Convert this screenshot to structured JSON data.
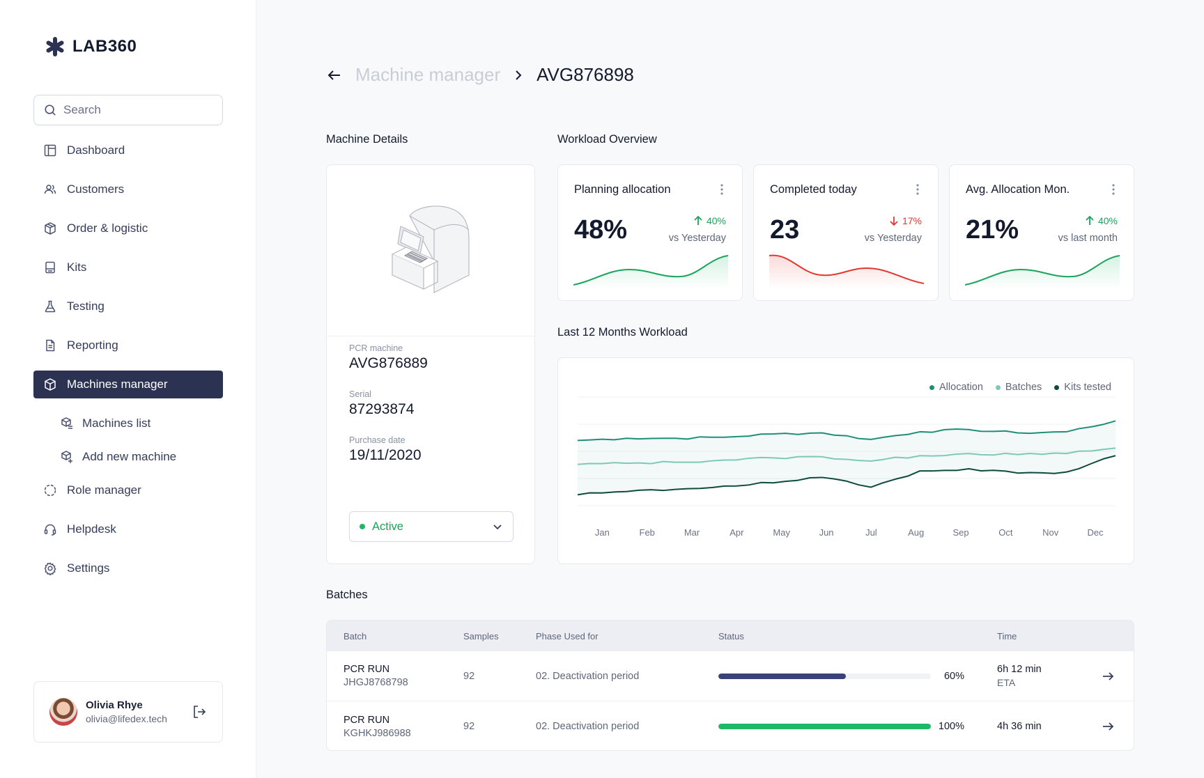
{
  "app": {
    "name": "LAB360"
  },
  "search": {
    "placeholder": "Search"
  },
  "nav": {
    "dashboard": "Dashboard",
    "customers": "Customers",
    "orders": "Order & logistic",
    "kits": "Kits",
    "testing": "Testing",
    "reporting": "Reporting",
    "machines": "Machines manager",
    "machines_list": "Machines list",
    "add_machine": "Add new machine",
    "roles": "Role manager",
    "helpdesk": "Helpdesk",
    "settings": "Settings"
  },
  "user": {
    "name": "Olivia Rhye",
    "email": "olivia@lifedex.tech"
  },
  "breadcrumb": {
    "parent": "Machine manager",
    "current": "AVG876898"
  },
  "machine": {
    "section_title": "Machine Details",
    "type_label": "PCR machine",
    "name": "AVG876889",
    "serial_label": "Serial",
    "serial": "87293874",
    "purchase_label": "Purchase date",
    "purchase_date": "19/11/2020",
    "status": "Active"
  },
  "workload": {
    "section_title": "Workload Overview",
    "kpis": [
      {
        "title": "Planning allocation",
        "value": "48%",
        "delta": "40%",
        "direction": "up",
        "sub": "vs Yesterday",
        "color": "#1aa35a"
      },
      {
        "title": "Completed today",
        "value": "23",
        "delta": "17%",
        "direction": "down",
        "sub": "vs Yesterday",
        "color": "#e2382f"
      },
      {
        "title": "Avg. Allocation Mon.",
        "value": "21%",
        "delta": "40%",
        "direction": "up",
        "sub": "vs last month",
        "color": "#1aa35a"
      }
    ]
  },
  "chart_section": {
    "title": "Last 12 Months Workload"
  },
  "chart_data": {
    "type": "line",
    "title": "Last 12 Months Workload",
    "categories": [
      "Jan",
      "Feb",
      "Mar",
      "Apr",
      "May",
      "Jun",
      "Jul",
      "Aug",
      "Sep",
      "Oct",
      "Nov",
      "Dec"
    ],
    "ylim": [
      0,
      100
    ],
    "grid": true,
    "legend": "top-right",
    "series": [
      {
        "name": "Allocation",
        "color": "#1d8f78",
        "values": [
          60,
          62,
          62,
          63,
          66,
          67,
          61,
          68,
          70,
          67,
          68,
          78
        ]
      },
      {
        "name": "Batches",
        "color": "#7cc9b8",
        "values": [
          38,
          39,
          40,
          42,
          44,
          45,
          41,
          46,
          48,
          47,
          48,
          53
        ]
      },
      {
        "name": "Kits tested",
        "color": "#0e4a3d",
        "values": [
          10,
          13,
          15,
          18,
          21,
          26,
          17,
          32,
          34,
          30,
          31,
          46
        ]
      }
    ]
  },
  "batches": {
    "section_title": "Batches",
    "headers": {
      "batch": "Batch",
      "samples": "Samples",
      "phase": "Phase Used for",
      "status": "Status",
      "time": "Time"
    },
    "rows": [
      {
        "title": "PCR RUN",
        "id": "JHGJ8768798",
        "samples": "92",
        "phase": "02. Deactivation period",
        "progress": 60,
        "pct_label": "60%",
        "bar_color": "#394278",
        "time": "6h 12 min",
        "time_sub": "ETA"
      },
      {
        "title": "PCR RUN",
        "id": "KGHKJ986988",
        "samples": "92",
        "phase": "02. Deactivation period",
        "progress": 100,
        "pct_label": "100%",
        "bar_color": "#1fb865",
        "time": "4h 36 min",
        "time_sub": ""
      }
    ]
  }
}
